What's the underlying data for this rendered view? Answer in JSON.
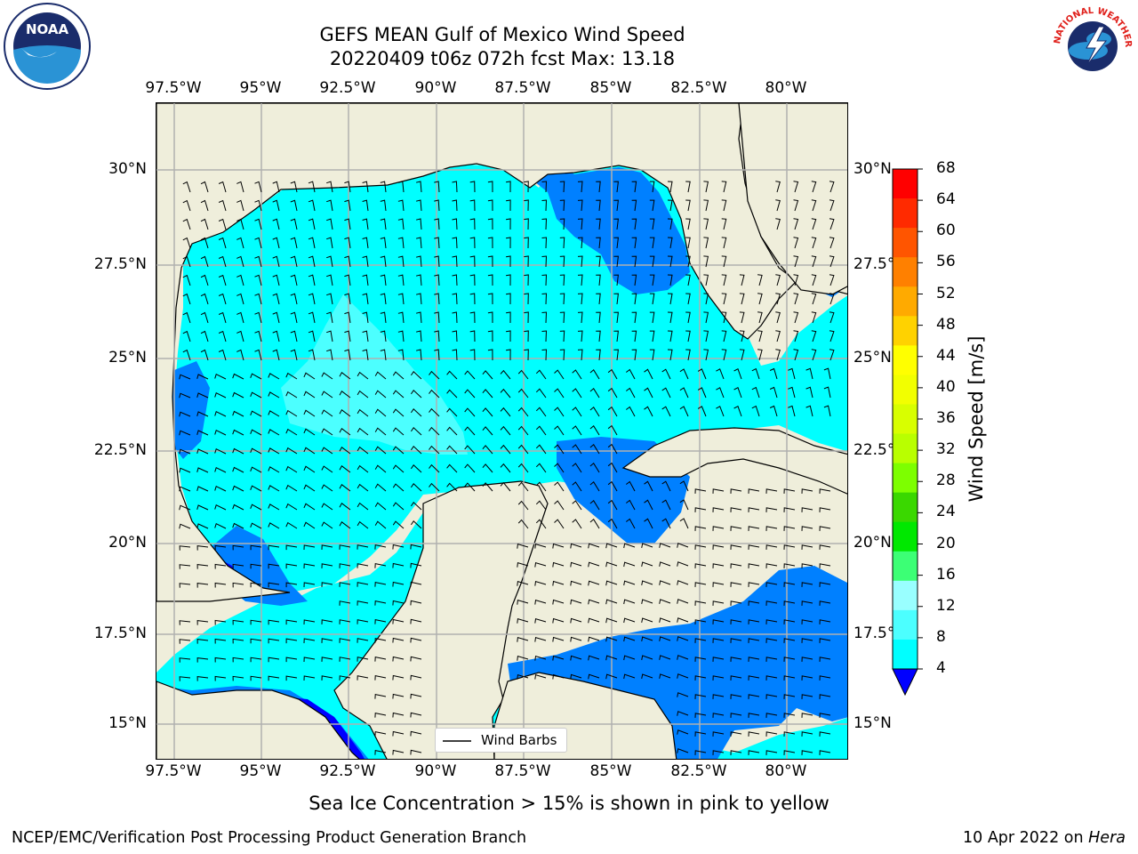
{
  "title": {
    "line1": "GEFS MEAN Gulf of Mexico Wind Speed",
    "line2": "20220409 t06z 072h fcst   Max: 13.18"
  },
  "logos": {
    "noaa": {
      "name": "noaa-logo",
      "text": "NOAA",
      "ring": "NATIONAL OCEANIC AND ATMOSPHERIC ADMINISTRATION · U.S. DEPARTMENT OF COMMERCE"
    },
    "nws": {
      "name": "nws-logo",
      "text": "NATIONAL WEATHER SERVICE"
    }
  },
  "axes": {
    "lon_labels": [
      "97.5°W",
      "95°W",
      "92.5°W",
      "90°W",
      "87.5°W",
      "85°W",
      "82.5°W",
      "80°W"
    ],
    "lat_labels": [
      "30°N",
      "27.5°N",
      "25°N",
      "22.5°N",
      "20°N",
      "17.5°N",
      "15°N"
    ],
    "lat_labels_right": [
      "30°N",
      "27.5°N",
      "25°N",
      "22.5°N",
      "20°N",
      "17.5°N",
      "15°N"
    ]
  },
  "colorbar": {
    "label": "Wind Speed [m/s]",
    "ticks": [
      "68",
      "64",
      "60",
      "56",
      "52",
      "48",
      "44",
      "40",
      "36",
      "32",
      "28",
      "24",
      "20",
      "16",
      "12",
      "8",
      "4"
    ],
    "colors": [
      "#ff0000",
      "#ff2a00",
      "#ff5500",
      "#ff8000",
      "#ffaa00",
      "#ffd200",
      "#ffff00",
      "#f2ff00",
      "#d8ff00",
      "#b9ff00",
      "#7dff00",
      "#3ad800",
      "#00e800",
      "#3cff75",
      "#99ffff",
      "#4cffff",
      "#00ffff",
      "#0080ff"
    ],
    "under_color": "#0000ff"
  },
  "legend": {
    "label": "Wind Barbs"
  },
  "colors": {
    "land": "#efeedb",
    "band_4_8": "#0080ff",
    "band_8_12": "#00ffff",
    "band_12_16": "#4cffff",
    "band_0_4": "#0000ff",
    "grid": "#b0b0b0"
  },
  "subtitle": "Sea Ice Concentration > 15% is shown in pink to yellow",
  "footer": {
    "left": "NCEP/EMC/Verification Post Processing Product Generation Branch",
    "right_date": "10 Apr 2022 on ",
    "right_machine": "Hera"
  }
}
